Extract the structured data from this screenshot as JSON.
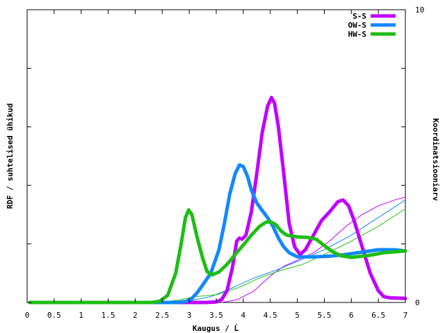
{
  "chart_data": {
    "type": "line",
    "xlabel": "Kaugus / Ĺ",
    "ylabel_left": "RDF / suhtelised ühikud",
    "ylabel_right": "Koordinatsiooniarv",
    "xlim": [
      0,
      7
    ],
    "ylim_left": [
      0,
      5
    ],
    "ylim_right": [
      0,
      10
    ],
    "x_ticks": [
      "0",
      "0.5",
      "1",
      "1.5",
      "2",
      "2.5",
      "3",
      "3.5",
      "4",
      "4.5",
      "5",
      "5.5",
      "6",
      "6.5",
      "7"
    ],
    "right_ticks": [
      "0",
      "10"
    ],
    "grid": false,
    "legend_position": "top-right",
    "series": [
      {
        "name": "S-S",
        "color": "#c000ff",
        "kind": "rdf",
        "points": [
          [
            0.05,
            0
          ],
          [
            3.3,
            0
          ],
          [
            3.5,
            0.01
          ],
          [
            3.6,
            0.05
          ],
          [
            3.7,
            0.2
          ],
          [
            3.8,
            0.6
          ],
          [
            3.88,
            1.05
          ],
          [
            3.93,
            1.1
          ],
          [
            3.98,
            1.08
          ],
          [
            4.05,
            1.15
          ],
          [
            4.15,
            1.55
          ],
          [
            4.25,
            2.2
          ],
          [
            4.35,
            2.9
          ],
          [
            4.45,
            3.35
          ],
          [
            4.52,
            3.5
          ],
          [
            4.58,
            3.4
          ],
          [
            4.65,
            3.0
          ],
          [
            4.75,
            2.2
          ],
          [
            4.85,
            1.35
          ],
          [
            4.95,
            0.95
          ],
          [
            5.05,
            0.82
          ],
          [
            5.15,
            0.9
          ],
          [
            5.3,
            1.15
          ],
          [
            5.45,
            1.4
          ],
          [
            5.6,
            1.55
          ],
          [
            5.75,
            1.72
          ],
          [
            5.85,
            1.75
          ],
          [
            5.95,
            1.65
          ],
          [
            6.05,
            1.4
          ],
          [
            6.2,
            0.95
          ],
          [
            6.35,
            0.5
          ],
          [
            6.5,
            0.2
          ],
          [
            6.6,
            0.1
          ],
          [
            6.7,
            0.08
          ],
          [
            7.0,
            0.07
          ]
        ]
      },
      {
        "name": "OW-S",
        "color": "#1288ff",
        "kind": "rdf",
        "points": [
          [
            0.05,
            0
          ],
          [
            2.8,
            0
          ],
          [
            2.95,
            0.02
          ],
          [
            3.05,
            0.07
          ],
          [
            3.15,
            0.17
          ],
          [
            3.25,
            0.3
          ],
          [
            3.4,
            0.5
          ],
          [
            3.55,
            0.9
          ],
          [
            3.65,
            1.35
          ],
          [
            3.75,
            1.85
          ],
          [
            3.85,
            2.2
          ],
          [
            3.93,
            2.35
          ],
          [
            4.0,
            2.32
          ],
          [
            4.08,
            2.15
          ],
          [
            4.15,
            1.92
          ],
          [
            4.25,
            1.7
          ],
          [
            4.35,
            1.57
          ],
          [
            4.45,
            1.45
          ],
          [
            4.55,
            1.3
          ],
          [
            4.65,
            1.1
          ],
          [
            4.75,
            0.95
          ],
          [
            4.85,
            0.85
          ],
          [
            5.0,
            0.78
          ],
          [
            5.3,
            0.78
          ],
          [
            5.6,
            0.79
          ],
          [
            5.9,
            0.82
          ],
          [
            6.2,
            0.86
          ],
          [
            6.5,
            0.9
          ],
          [
            6.8,
            0.9
          ],
          [
            7.0,
            0.88
          ]
        ]
      },
      {
        "name": "HW-S",
        "color": "#1ebe14",
        "kind": "rdf",
        "points": [
          [
            0.05,
            0
          ],
          [
            2.3,
            0
          ],
          [
            2.45,
            0.02
          ],
          [
            2.6,
            0.12
          ],
          [
            2.75,
            0.5
          ],
          [
            2.85,
            1.0
          ],
          [
            2.93,
            1.45
          ],
          [
            2.99,
            1.58
          ],
          [
            3.05,
            1.5
          ],
          [
            3.15,
            1.1
          ],
          [
            3.25,
            0.75
          ],
          [
            3.33,
            0.53
          ],
          [
            3.42,
            0.47
          ],
          [
            3.55,
            0.52
          ],
          [
            3.7,
            0.65
          ],
          [
            3.85,
            0.82
          ],
          [
            4.0,
            0.98
          ],
          [
            4.15,
            1.15
          ],
          [
            4.3,
            1.3
          ],
          [
            4.42,
            1.37
          ],
          [
            4.5,
            1.38
          ],
          [
            4.6,
            1.33
          ],
          [
            4.7,
            1.22
          ],
          [
            4.8,
            1.15
          ],
          [
            5.0,
            1.12
          ],
          [
            5.2,
            1.11
          ],
          [
            5.35,
            1.08
          ],
          [
            5.5,
            0.97
          ],
          [
            5.65,
            0.87
          ],
          [
            5.8,
            0.8
          ],
          [
            6.0,
            0.77
          ],
          [
            6.3,
            0.8
          ],
          [
            6.6,
            0.85
          ],
          [
            7.0,
            0.88
          ]
        ]
      },
      {
        "name": "S-S",
        "color": "#c000ff",
        "kind": "cn",
        "show_in_legend": false,
        "points": [
          [
            3.6,
            0
          ],
          [
            3.9,
            0.05
          ],
          [
            4.2,
            0.2
          ],
          [
            4.5,
            0.45
          ],
          [
            4.75,
            0.62
          ],
          [
            5.0,
            0.72
          ],
          [
            5.3,
            0.85
          ],
          [
            5.6,
            1.05
          ],
          [
            5.9,
            1.3
          ],
          [
            6.2,
            1.5
          ],
          [
            6.5,
            1.65
          ],
          [
            6.8,
            1.75
          ],
          [
            7.0,
            1.8
          ]
        ]
      },
      {
        "name": "OW-S",
        "color": "#1288ff",
        "kind": "cn",
        "show_in_legend": false,
        "points": [
          [
            2.8,
            0
          ],
          [
            3.0,
            0.03
          ],
          [
            3.4,
            0.1
          ],
          [
            3.8,
            0.25
          ],
          [
            4.2,
            0.42
          ],
          [
            4.6,
            0.55
          ],
          [
            5.0,
            0.7
          ],
          [
            5.5,
            0.9
          ],
          [
            6.0,
            1.15
          ],
          [
            6.5,
            1.45
          ],
          [
            7.0,
            1.75
          ]
        ]
      },
      {
        "name": "HW-S",
        "color": "#1ebe14",
        "kind": "cn",
        "show_in_legend": false,
        "points": [
          [
            2.4,
            0
          ],
          [
            2.8,
            0.04
          ],
          [
            3.1,
            0.1
          ],
          [
            3.5,
            0.13
          ],
          [
            3.9,
            0.25
          ],
          [
            4.3,
            0.42
          ],
          [
            4.7,
            0.55
          ],
          [
            5.1,
            0.65
          ],
          [
            5.5,
            0.82
          ],
          [
            6.0,
            1.05
          ],
          [
            6.5,
            1.3
          ],
          [
            7.0,
            1.6
          ]
        ]
      }
    ]
  }
}
